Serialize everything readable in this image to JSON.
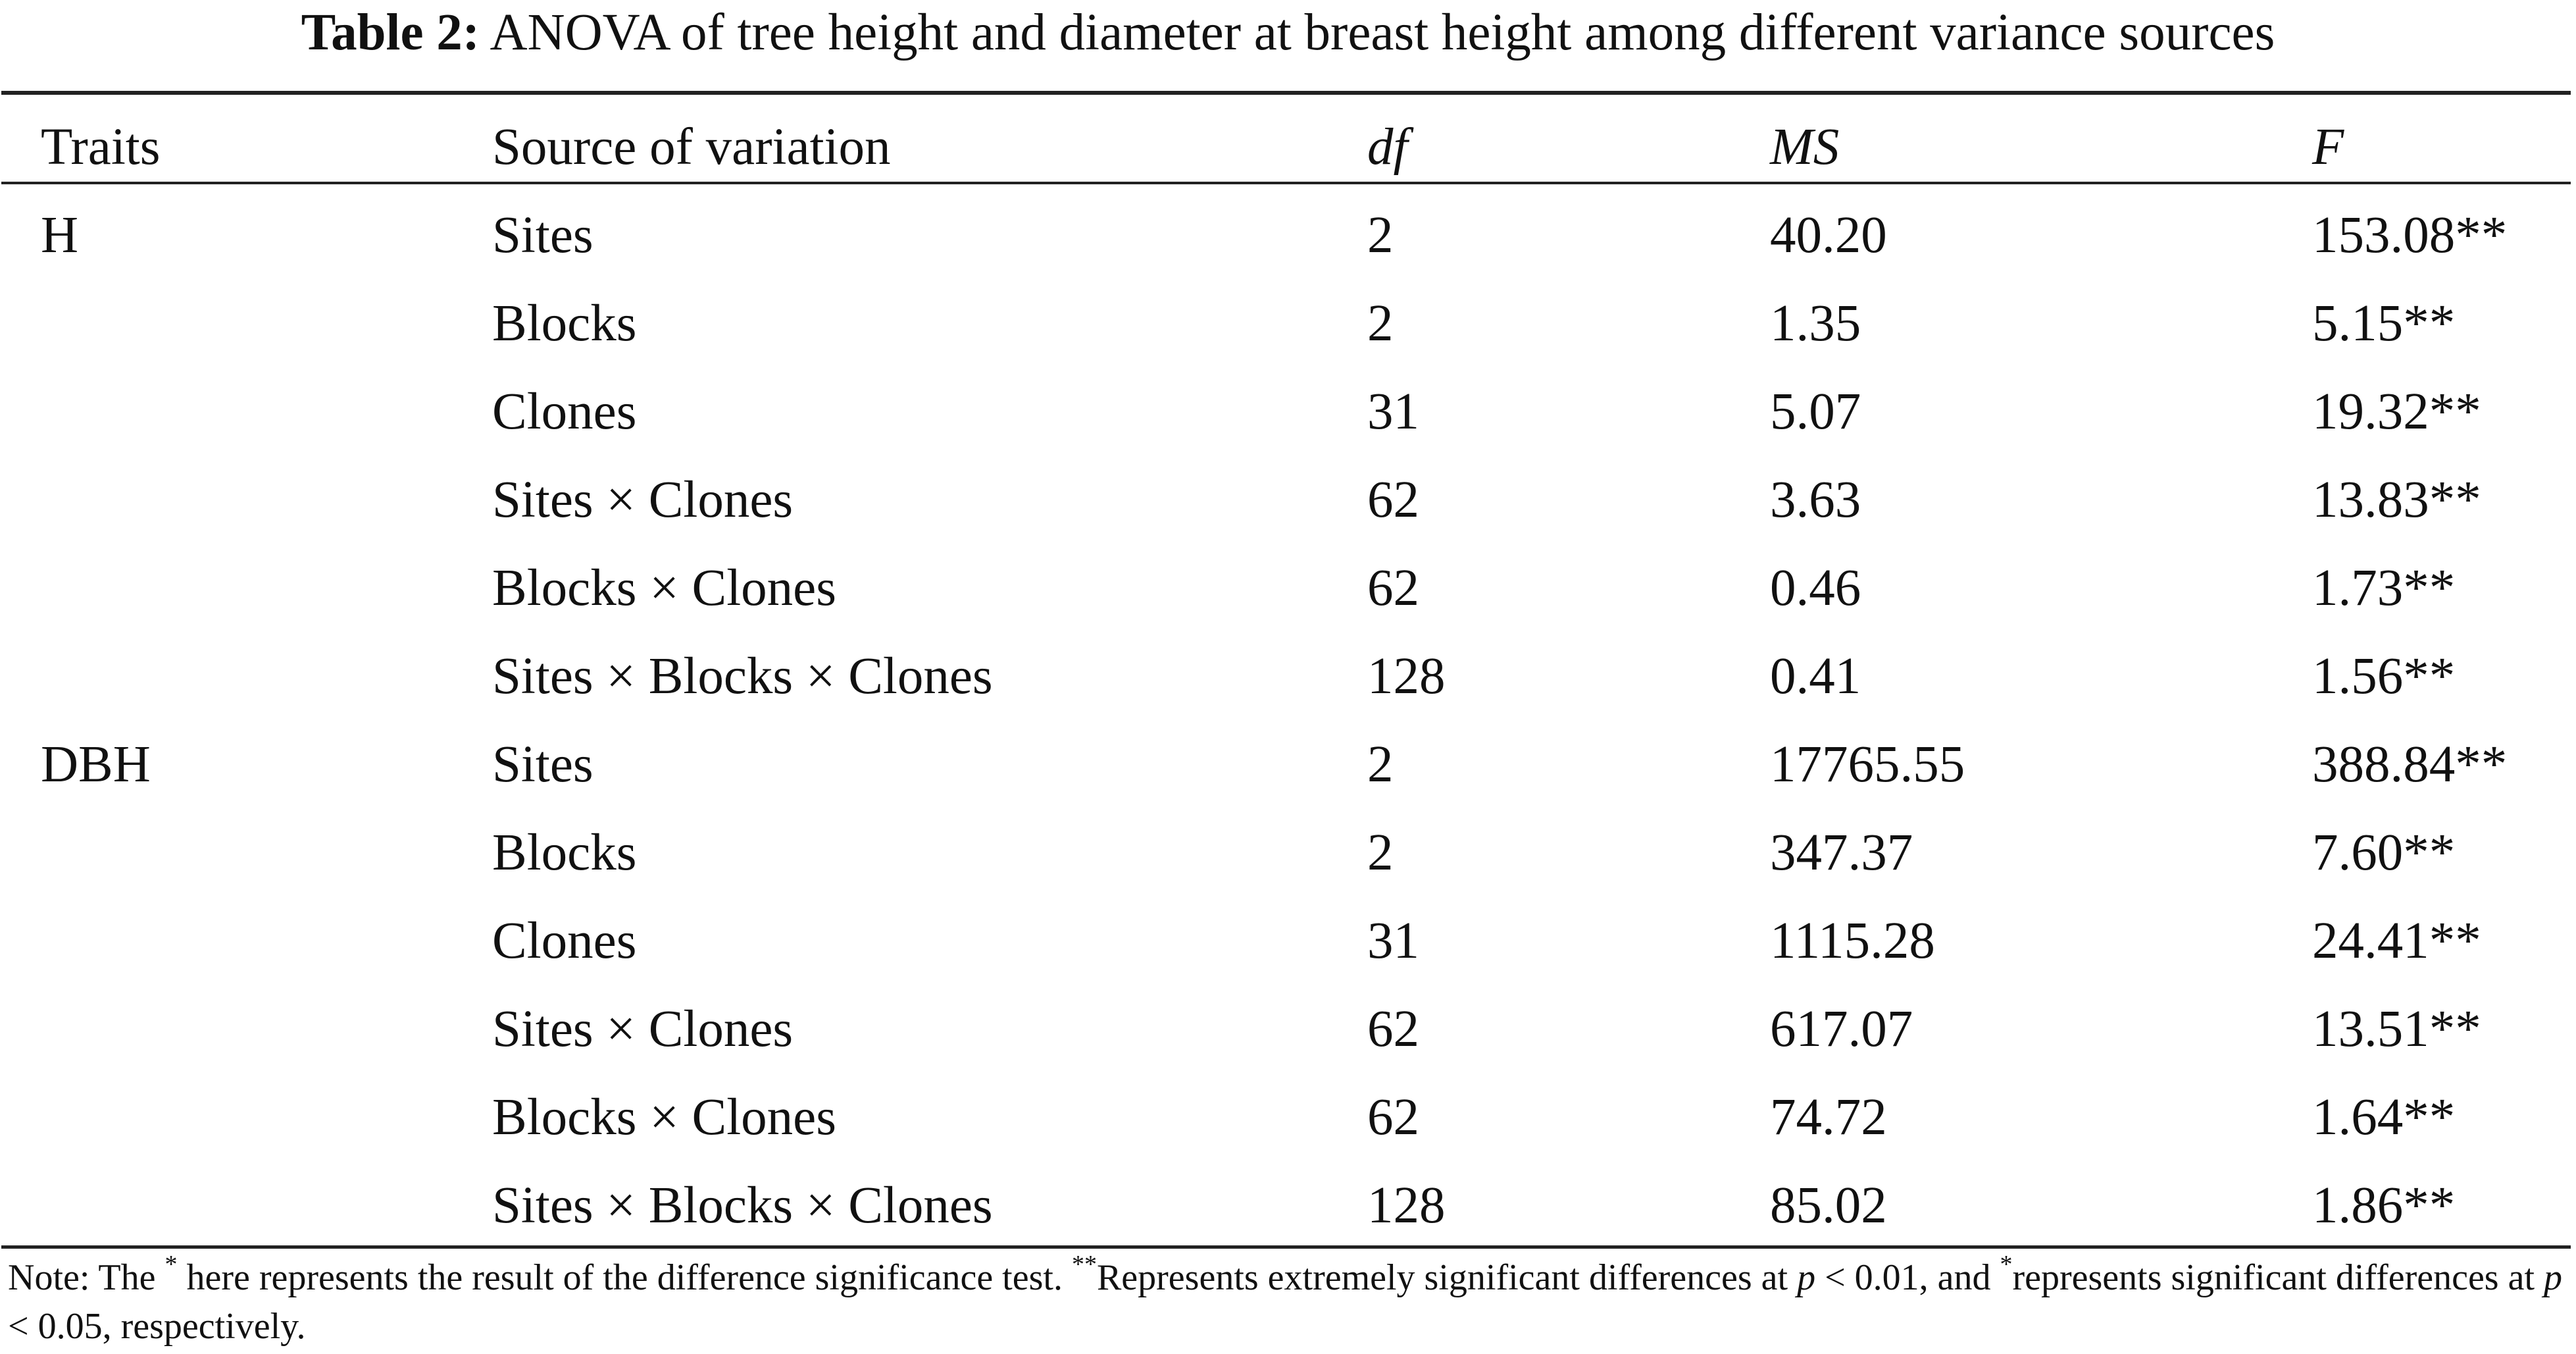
{
  "caption": {
    "label": "Table 2:",
    "title": "ANOVA of tree height and diameter at breast height among different variance sources"
  },
  "table": {
    "headers": {
      "traits": "Traits",
      "source": "Source of variation",
      "df": "df",
      "ms": "MS",
      "f": "F"
    },
    "rows": [
      {
        "trait": "H",
        "source": "Sites",
        "df": "2",
        "ms": "40.20",
        "f": "153.08**"
      },
      {
        "trait": "",
        "source": "Blocks",
        "df": "2",
        "ms": "1.35",
        "f": "5.15**"
      },
      {
        "trait": "",
        "source": "Clones",
        "df": "31",
        "ms": "5.07",
        "f": "19.32**"
      },
      {
        "trait": "",
        "source": "Sites × Clones",
        "df": "62",
        "ms": "3.63",
        "f": "13.83**"
      },
      {
        "trait": "",
        "source": "Blocks × Clones",
        "df": "62",
        "ms": "0.46",
        "f": "1.73**"
      },
      {
        "trait": "",
        "source": "Sites × Blocks × Clones",
        "df": "128",
        "ms": "0.41",
        "f": "1.56**"
      },
      {
        "trait": "DBH",
        "source": "Sites",
        "df": "2",
        "ms": "17765.55",
        "f": "388.84**"
      },
      {
        "trait": "",
        "source": "Blocks",
        "df": "2",
        "ms": "347.37",
        "f": "7.60**"
      },
      {
        "trait": "",
        "source": "Clones",
        "df": "31",
        "ms": "1115.28",
        "f": "24.41**"
      },
      {
        "trait": "",
        "source": "Sites × Clones",
        "df": "62",
        "ms": "617.07",
        "f": "13.51**"
      },
      {
        "trait": "",
        "source": "Blocks × Clones",
        "df": "62",
        "ms": "74.72",
        "f": "1.64**"
      },
      {
        "trait": "",
        "source": "Sites × Blocks × Clones",
        "df": "128",
        "ms": "85.02",
        "f": "1.86**"
      }
    ]
  },
  "note": {
    "part1": "Note: The ",
    "sup1": "*",
    "part2": " here represents the result of the difference significance test. ",
    "sup2": "**",
    "part3": "Represents extremely significant differences at ",
    "p1": "p",
    "part4": " < 0.01, and ",
    "sup3": "*",
    "part5": "represents significant differences at ",
    "p2": "p",
    "part6": " < 0.05, respectively."
  }
}
